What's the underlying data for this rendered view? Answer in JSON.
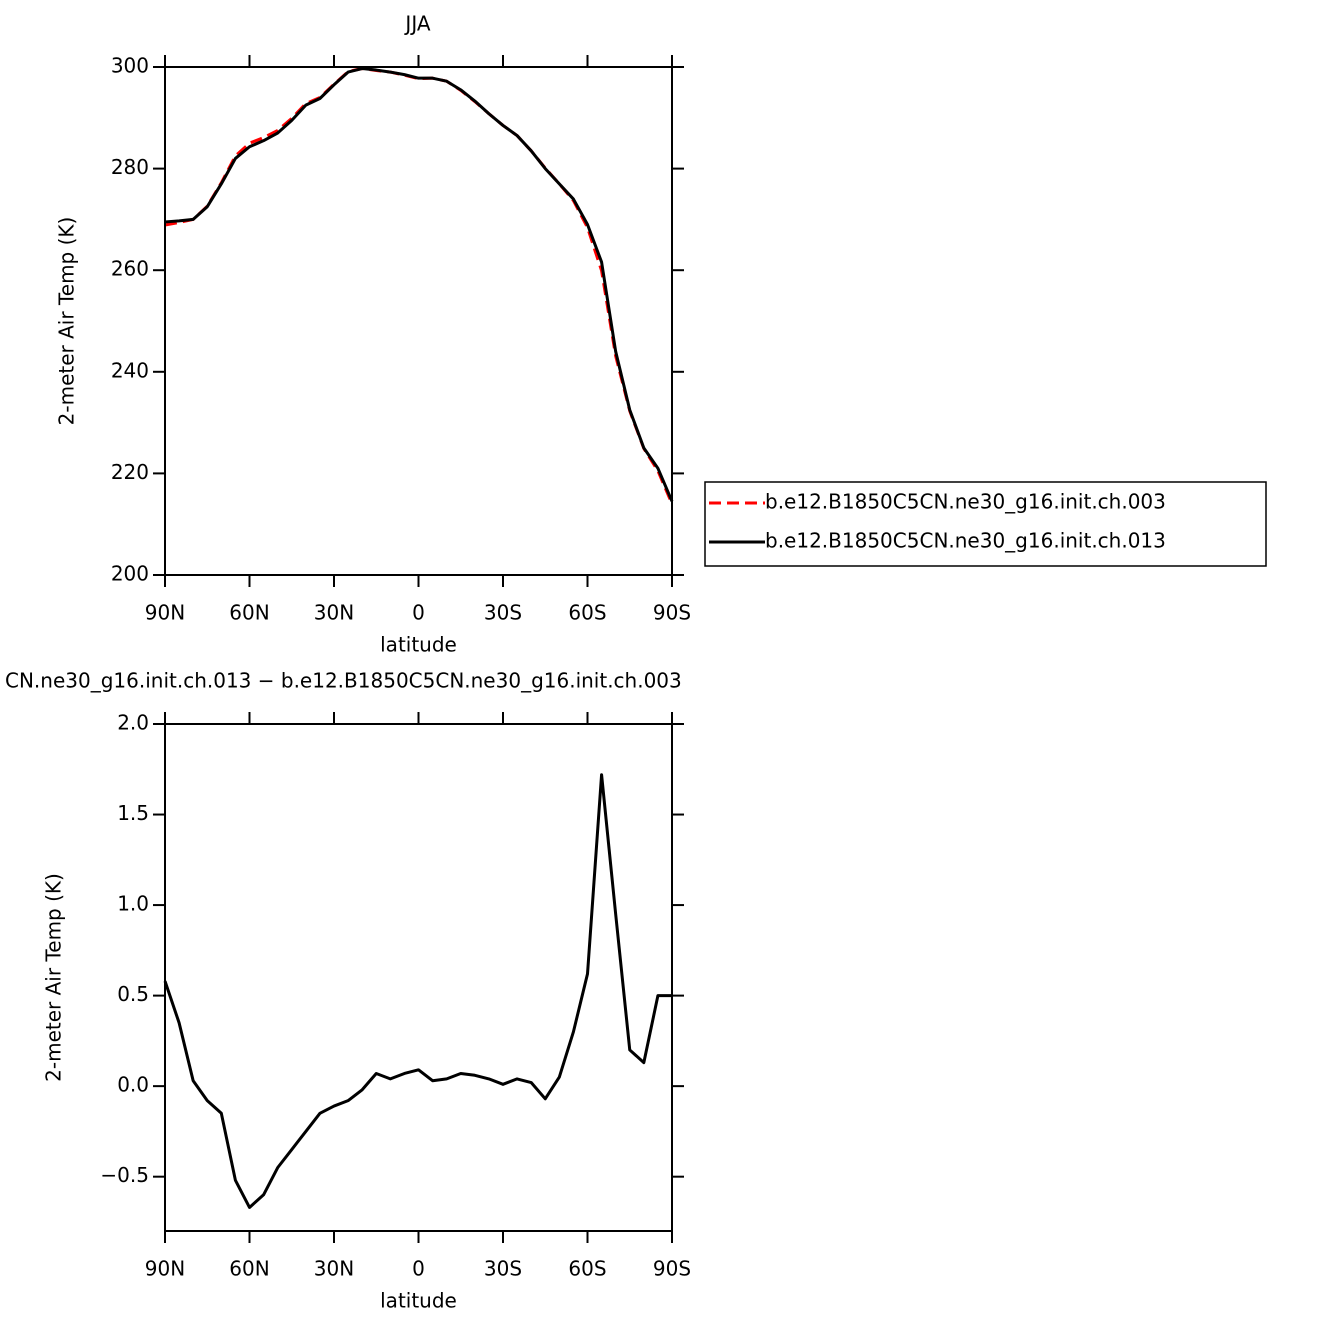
{
  "chart_data": [
    {
      "type": "line",
      "title": "JJA",
      "xlabel": "latitude",
      "ylabel": "2-meter Air Temp (K)",
      "x": [
        90,
        85,
        80,
        75,
        70,
        65,
        60,
        55,
        50,
        45,
        40,
        35,
        30,
        25,
        20,
        15,
        10,
        5,
        0,
        -5,
        -10,
        -15,
        -20,
        -25,
        -30,
        -35,
        -40,
        -45,
        -50,
        -55,
        -60,
        -65,
        -70,
        -75,
        -80,
        -85,
        -90
      ],
      "series": [
        {
          "name": "b.e12.B1850C5CN.ne30_g16.init.ch.003",
          "color": "#ff0000",
          "dash": true,
          "values": [
            268.9,
            269.4,
            270.0,
            272.6,
            277.2,
            282.5,
            285.0,
            286.1,
            287.5,
            289.9,
            292.8,
            294.0,
            296.6,
            299.1,
            299.7,
            299.3,
            299.0,
            298.4,
            297.7,
            297.8,
            297.2,
            295.4,
            293.2,
            290.8,
            288.5,
            286.5,
            283.5,
            280.1,
            277.0,
            273.7,
            268.4,
            259.9,
            243.1,
            232.3,
            224.9,
            220.5,
            214.0
          ]
        },
        {
          "name": "b.e12.B1850C5CN.ne30_g16.init.ch.013",
          "color": "#000000",
          "dash": false,
          "values": [
            269.5,
            269.7,
            270.0,
            272.5,
            277.0,
            282.0,
            284.3,
            285.5,
            287.0,
            289.5,
            292.5,
            293.8,
            296.5,
            299.0,
            299.7,
            299.4,
            299.0,
            298.5,
            297.8,
            297.8,
            297.2,
            295.5,
            293.3,
            290.8,
            288.5,
            286.5,
            283.5,
            280.0,
            277.0,
            274.0,
            269.0,
            261.6,
            244.0,
            232.5,
            225.0,
            221.0,
            214.5
          ]
        }
      ],
      "xlim": [
        90,
        -90
      ],
      "xticks": [
        {
          "value": 90,
          "label": "90N"
        },
        {
          "value": 60,
          "label": "60N"
        },
        {
          "value": 30,
          "label": "30N"
        },
        0,
        {
          "value": -30,
          "label": "30S"
        },
        {
          "value": -60,
          "label": "60S"
        },
        {
          "value": -90,
          "label": "90S"
        }
      ],
      "ylim": [
        200,
        300
      ],
      "yticks": [
        200,
        220,
        240,
        260,
        280,
        300
      ]
    },
    {
      "type": "line",
      "title": "CN.ne30_g16.init.ch.013 − b.e12.B1850C5CN.ne30_g16.init.ch.003",
      "xlabel": "latitude",
      "ylabel": "2-meter Air Temp (K)",
      "x": [
        90,
        85,
        80,
        75,
        70,
        65,
        60,
        55,
        50,
        45,
        40,
        35,
        30,
        25,
        20,
        15,
        10,
        5,
        0,
        -5,
        -10,
        -15,
        -20,
        -25,
        -30,
        -35,
        -40,
        -45,
        -50,
        -55,
        -60,
        -65,
        -70,
        -75,
        -80,
        -85,
        -90
      ],
      "series": [
        {
          "color": "#000000",
          "dash": false,
          "values": [
            0.58,
            0.35,
            0.03,
            -0.08,
            -0.15,
            -0.52,
            -0.67,
            -0.6,
            -0.45,
            -0.35,
            -0.25,
            -0.15,
            -0.11,
            -0.08,
            -0.02,
            0.07,
            0.04,
            0.07,
            0.09,
            0.03,
            0.04,
            0.07,
            0.06,
            0.04,
            0.01,
            0.04,
            0.02,
            -0.07,
            0.05,
            0.3,
            0.62,
            1.72,
            0.95,
            0.2,
            0.13,
            0.5,
            0.5
          ]
        }
      ],
      "xlim": [
        90,
        -90
      ],
      "xticks": [
        {
          "value": 90,
          "label": "90N"
        },
        {
          "value": 60,
          "label": "60N"
        },
        {
          "value": 30,
          "label": "30N"
        },
        0,
        {
          "value": -30,
          "label": "30S"
        },
        {
          "value": -60,
          "label": "60S"
        },
        {
          "value": -90,
          "label": "90S"
        }
      ],
      "ylim": [
        -0.8,
        2.0
      ],
      "yticks": [
        {
          "value": -0.5,
          "label": "−0.5"
        },
        {
          "value": 0,
          "label": "0.0"
        },
        {
          "value": 0.5,
          "label": "0.5"
        },
        {
          "value": 1.0,
          "label": "1.0"
        },
        {
          "value": 1.5,
          "label": "1.5"
        },
        {
          "value": 2.0,
          "label": "2.0"
        }
      ]
    }
  ]
}
